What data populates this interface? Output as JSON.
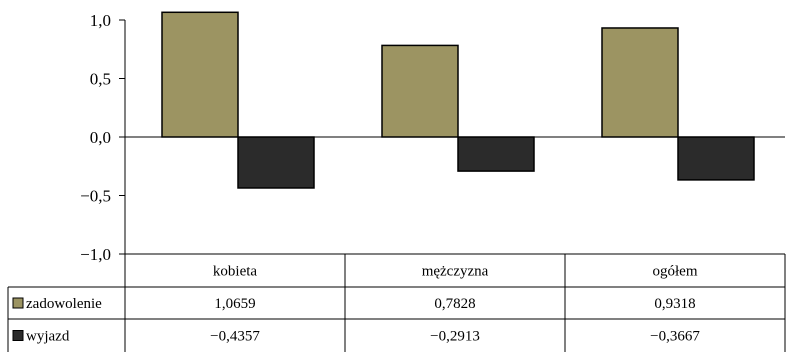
{
  "chart_data": {
    "type": "bar",
    "categories": [
      "kobieta",
      "mężczyzna",
      "ogółem"
    ],
    "series": [
      {
        "name": "zadowolenie",
        "values": [
          1.0659,
          0.7828,
          0.9318
        ],
        "labels": [
          "1,0659",
          "0,7828",
          "0,9318"
        ],
        "color": "#9c9462"
      },
      {
        "name": "wyjazd",
        "values": [
          -0.4357,
          -0.2913,
          -0.3667
        ],
        "labels": [
          "−0,4357",
          "−0,2913",
          "−0,3667"
        ],
        "color": "#2b2b2b"
      }
    ],
    "ylim": [
      -1.0,
      1.0
    ],
    "yticks": [
      1.0,
      0.5,
      0.0,
      -0.5,
      -1.0
    ],
    "ytick_labels": [
      "1,0",
      "0,5",
      "0,0",
      "−0,5",
      "−1,0"
    ],
    "grid": false,
    "legend": "data-table",
    "title": "",
    "xlabel": "",
    "ylabel": ""
  }
}
